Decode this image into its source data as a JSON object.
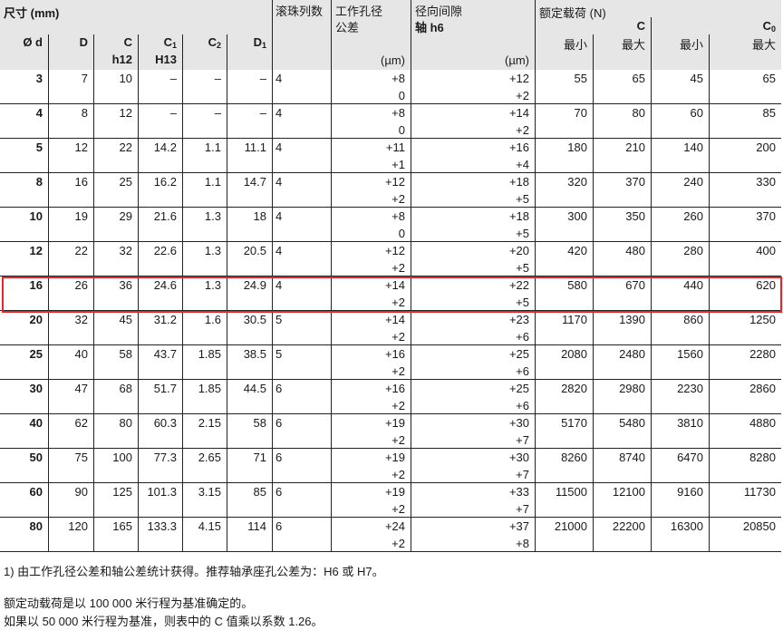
{
  "header": {
    "size": "尺寸 (mm)",
    "d": "Ø d",
    "D": "D",
    "C": "C",
    "C_tol": "h12",
    "C1": "C",
    "C1_sub": "1",
    "C1_tol": "H13",
    "C2": "C",
    "C2_sub": "2",
    "D1": "D",
    "D1_sub": "1",
    "rows_label": "滚珠列数",
    "bore_label1": "工作孔径",
    "bore_label2": "公差",
    "bore_unit": "(µm)",
    "clear_label1": "径向间隙",
    "clear_label2": "轴 h6",
    "clear_unit": "(µm)",
    "load_label": "额定载荷 (N)",
    "dyn": "C",
    "stat": "C",
    "stat_sub": "0",
    "min": "最小",
    "max": "最大"
  },
  "rows": [
    {
      "d": "3",
      "D": "7",
      "C": "10",
      "C1": "–",
      "C2": "–",
      "D1": "–",
      "n": "4",
      "b1": "+8",
      "b2": "0",
      "c1": "+12",
      "c2": "+2",
      "Cmin": "55",
      "Cmax": "65",
      "C0min": "45",
      "C0max": "65"
    },
    {
      "d": "4",
      "D": "8",
      "C": "12",
      "C1": "–",
      "C2": "–",
      "D1": "–",
      "n": "4",
      "b1": "+8",
      "b2": "0",
      "c1": "+14",
      "c2": "+2",
      "Cmin": "70",
      "Cmax": "80",
      "C0min": "60",
      "C0max": "85"
    },
    {
      "d": "5",
      "D": "12",
      "C": "22",
      "C1": "14.2",
      "C2": "1.1",
      "D1": "11.1",
      "n": "4",
      "b1": "+11",
      "b2": "+1",
      "c1": "+16",
      "c2": "+4",
      "Cmin": "180",
      "Cmax": "210",
      "C0min": "140",
      "C0max": "200"
    },
    {
      "d": "8",
      "D": "16",
      "C": "25",
      "C1": "16.2",
      "C2": "1.1",
      "D1": "14.7",
      "n": "4",
      "b1": "+12",
      "b2": "+2",
      "c1": "+18",
      "c2": "+5",
      "Cmin": "320",
      "Cmax": "370",
      "C0min": "240",
      "C0max": "330"
    },
    {
      "d": "10",
      "D": "19",
      "C": "29",
      "C1": "21.6",
      "C2": "1.3",
      "D1": "18",
      "n": "4",
      "b1": "+8",
      "b2": "0",
      "c1": "+18",
      "c2": "+5",
      "Cmin": "300",
      "Cmax": "350",
      "C0min": "260",
      "C0max": "370"
    },
    {
      "d": "12",
      "D": "22",
      "C": "32",
      "C1": "22.6",
      "C2": "1.3",
      "D1": "20.5",
      "n": "4",
      "b1": "+12",
      "b2": "+2",
      "c1": "+20",
      "c2": "+5",
      "Cmin": "420",
      "Cmax": "480",
      "C0min": "280",
      "C0max": "400"
    },
    {
      "d": "16",
      "D": "26",
      "C": "36",
      "C1": "24.6",
      "C2": "1.3",
      "D1": "24.9",
      "n": "4",
      "b1": "+14",
      "b2": "+2",
      "c1": "+22",
      "c2": "+5",
      "Cmin": "580",
      "Cmax": "670",
      "C0min": "440",
      "C0max": "620"
    },
    {
      "d": "20",
      "D": "32",
      "C": "45",
      "C1": "31.2",
      "C2": "1.6",
      "D1": "30.5",
      "n": "5",
      "b1": "+14",
      "b2": "+2",
      "c1": "+23",
      "c2": "+6",
      "Cmin": "1170",
      "Cmax": "1390",
      "C0min": "860",
      "C0max": "1250"
    },
    {
      "d": "25",
      "D": "40",
      "C": "58",
      "C1": "43.7",
      "C2": "1.85",
      "D1": "38.5",
      "n": "5",
      "b1": "+16",
      "b2": "+2",
      "c1": "+25",
      "c2": "+6",
      "Cmin": "2080",
      "Cmax": "2480",
      "C0min": "1560",
      "C0max": "2280"
    },
    {
      "d": "30",
      "D": "47",
      "C": "68",
      "C1": "51.7",
      "C2": "1.85",
      "D1": "44.5",
      "n": "6",
      "b1": "+16",
      "b2": "+2",
      "c1": "+25",
      "c2": "+6",
      "Cmin": "2820",
      "Cmax": "2980",
      "C0min": "2230",
      "C0max": "2860"
    },
    {
      "d": "40",
      "D": "62",
      "C": "80",
      "C1": "60.3",
      "C2": "2.15",
      "D1": "58",
      "n": "6",
      "b1": "+19",
      "b2": "+2",
      "c1": "+30",
      "c2": "+7",
      "Cmin": "5170",
      "Cmax": "5480",
      "C0min": "3810",
      "C0max": "4880"
    },
    {
      "d": "50",
      "D": "75",
      "C": "100",
      "C1": "77.3",
      "C2": "2.65",
      "D1": "71",
      "n": "6",
      "b1": "+19",
      "b2": "+2",
      "c1": "+30",
      "c2": "+7",
      "Cmin": "8260",
      "Cmax": "8740",
      "C0min": "6470",
      "C0max": "8280"
    },
    {
      "d": "60",
      "D": "90",
      "C": "125",
      "C1": "101.3",
      "C2": "3.15",
      "D1": "85",
      "n": "6",
      "b1": "+19",
      "b2": "+2",
      "c1": "+33",
      "c2": "+7",
      "Cmin": "11500",
      "Cmax": "12100",
      "C0min": "9160",
      "C0max": "11730"
    },
    {
      "d": "80",
      "D": "120",
      "C": "165",
      "C1": "133.3",
      "C2": "4.15",
      "D1": "114",
      "n": "6",
      "b1": "+24",
      "b2": "+2",
      "c1": "+37",
      "c2": "+8",
      "Cmin": "21000",
      "Cmax": "22200",
      "C0min": "16300",
      "C0max": "20850"
    }
  ],
  "highlight_color": "#e8262a",
  "footnote": "1)  由工作孔径公差和轴公差统计获得。推荐轴承座孔公差为：H6 或 H7。",
  "note1": "额定动载荷是以 100 000 米行程为基准确定的。",
  "note2": "如果以 50 000 米行程为基准，则表中的 C 值乘以系数 1.26。"
}
